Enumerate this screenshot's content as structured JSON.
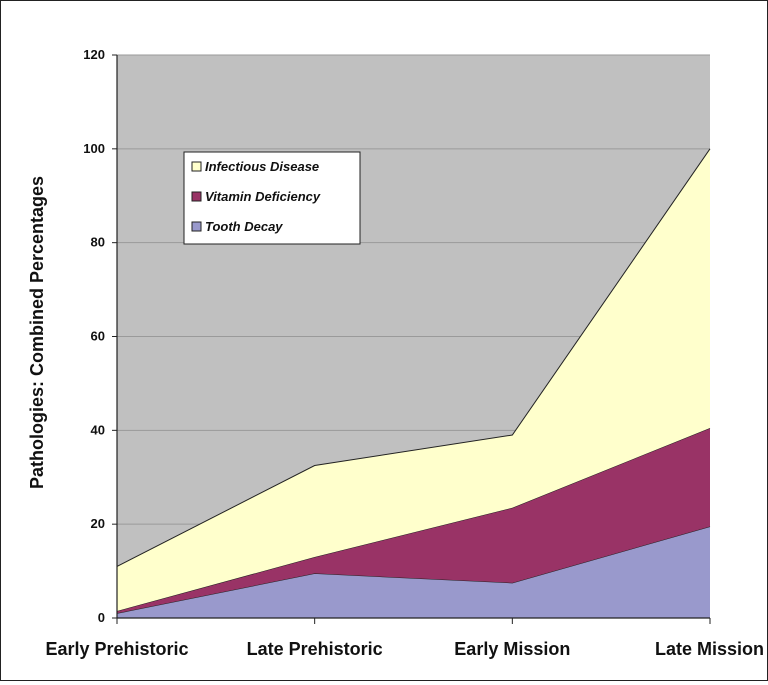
{
  "chart_data": {
    "type": "area",
    "stacked": true,
    "ylabel": "Pathologies: Combined Percentages",
    "xlabel": "",
    "title": "",
    "categories": [
      "Early Prehistoric",
      "Late Prehistoric",
      "Early Mission",
      "Late Mission"
    ],
    "ylim": [
      0,
      120
    ],
    "yticks": [
      "0",
      "20",
      "40",
      "60",
      "80",
      "100",
      "120"
    ],
    "grid": true,
    "legend_position": "top-left",
    "series": [
      {
        "name": "Tooth Decay",
        "color": "#9999cc",
        "values": [
          1,
          9.5,
          7.5,
          19.5
        ]
      },
      {
        "name": "Vitamin Deficiency",
        "color": "#993366",
        "values": [
          0.5,
          3.5,
          16,
          21
        ]
      },
      {
        "name": "Infectious Disease",
        "color": "#ffffcc",
        "values": [
          9.5,
          19.5,
          15.5,
          59.5
        ]
      }
    ],
    "legend_order": [
      "Infectious Disease",
      "Vitamin Deficiency",
      "Tooth Decay"
    ],
    "plot_background": "#c0c0c0"
  }
}
